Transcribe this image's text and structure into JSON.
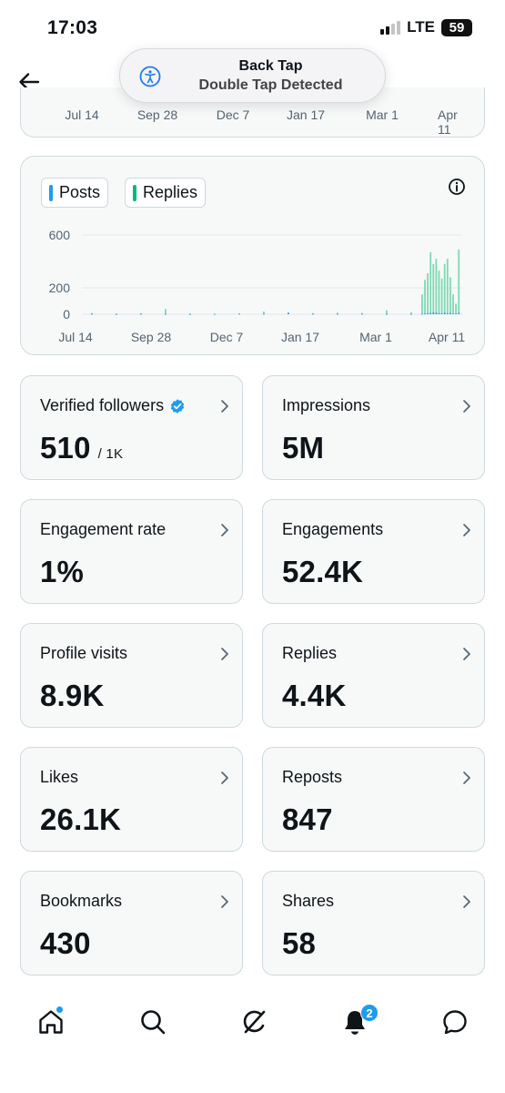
{
  "status_bar": {
    "time": "17:03",
    "network": "LTE",
    "battery": "59"
  },
  "toast": {
    "title": "Back Tap",
    "subtitle": "Double Tap Detected"
  },
  "top_card": {
    "ticks": [
      "Jul 14",
      "Sep 28",
      "Dec 7",
      "Jan 17",
      "Mar 1",
      "Apr 11"
    ]
  },
  "chart_data": {
    "type": "bar",
    "legend": [
      "Posts",
      "Replies"
    ],
    "series_colors": {
      "Posts": "#1d9bf0",
      "Replies": "#00ba7c"
    },
    "y_ticks": [
      "600",
      "200",
      "0"
    ],
    "x_ticks": [
      "Jul 14",
      "Sep 28",
      "Dec 7",
      "Jan 17",
      "Mar 1",
      "Apr 11"
    ],
    "ylim": [
      0,
      700
    ],
    "series": [
      {
        "name": "Posts",
        "values": [
          2,
          1,
          3,
          2,
          1,
          2,
          4,
          3,
          12,
          3,
          2,
          3,
          2,
          2,
          3,
          4,
          8,
          10,
          14,
          12,
          9,
          7,
          11,
          8,
          10,
          6,
          5,
          9
        ]
      },
      {
        "name": "Replies",
        "values": [
          10,
          6,
          8,
          40,
          6,
          4,
          7,
          20,
          6,
          9,
          12,
          10,
          30,
          15,
          150,
          260,
          310,
          470,
          380,
          420,
          330,
          270,
          380,
          420,
          280,
          150,
          80,
          490
        ]
      }
    ]
  },
  "metrics": [
    {
      "label": "Verified followers",
      "value": "510",
      "sub": "/ 1K"
    },
    {
      "label": "Impressions",
      "value": "5M"
    },
    {
      "label": "Engagement rate",
      "value": "1%"
    },
    {
      "label": "Engagements",
      "value": "52.4K"
    },
    {
      "label": "Profile visits",
      "value": "8.9K"
    },
    {
      "label": "Replies",
      "value": "4.4K"
    },
    {
      "label": "Likes",
      "value": "26.1K"
    },
    {
      "label": "Reposts",
      "value": "847"
    },
    {
      "label": "Bookmarks",
      "value": "430"
    },
    {
      "label": "Shares",
      "value": "58"
    }
  ],
  "nav": {
    "notifications_badge": "2"
  },
  "colors": {
    "accent": "#1d9bf0",
    "replies": "#00ba7c",
    "card_bg": "#f7f9f9",
    "border": "#cfd9de"
  }
}
